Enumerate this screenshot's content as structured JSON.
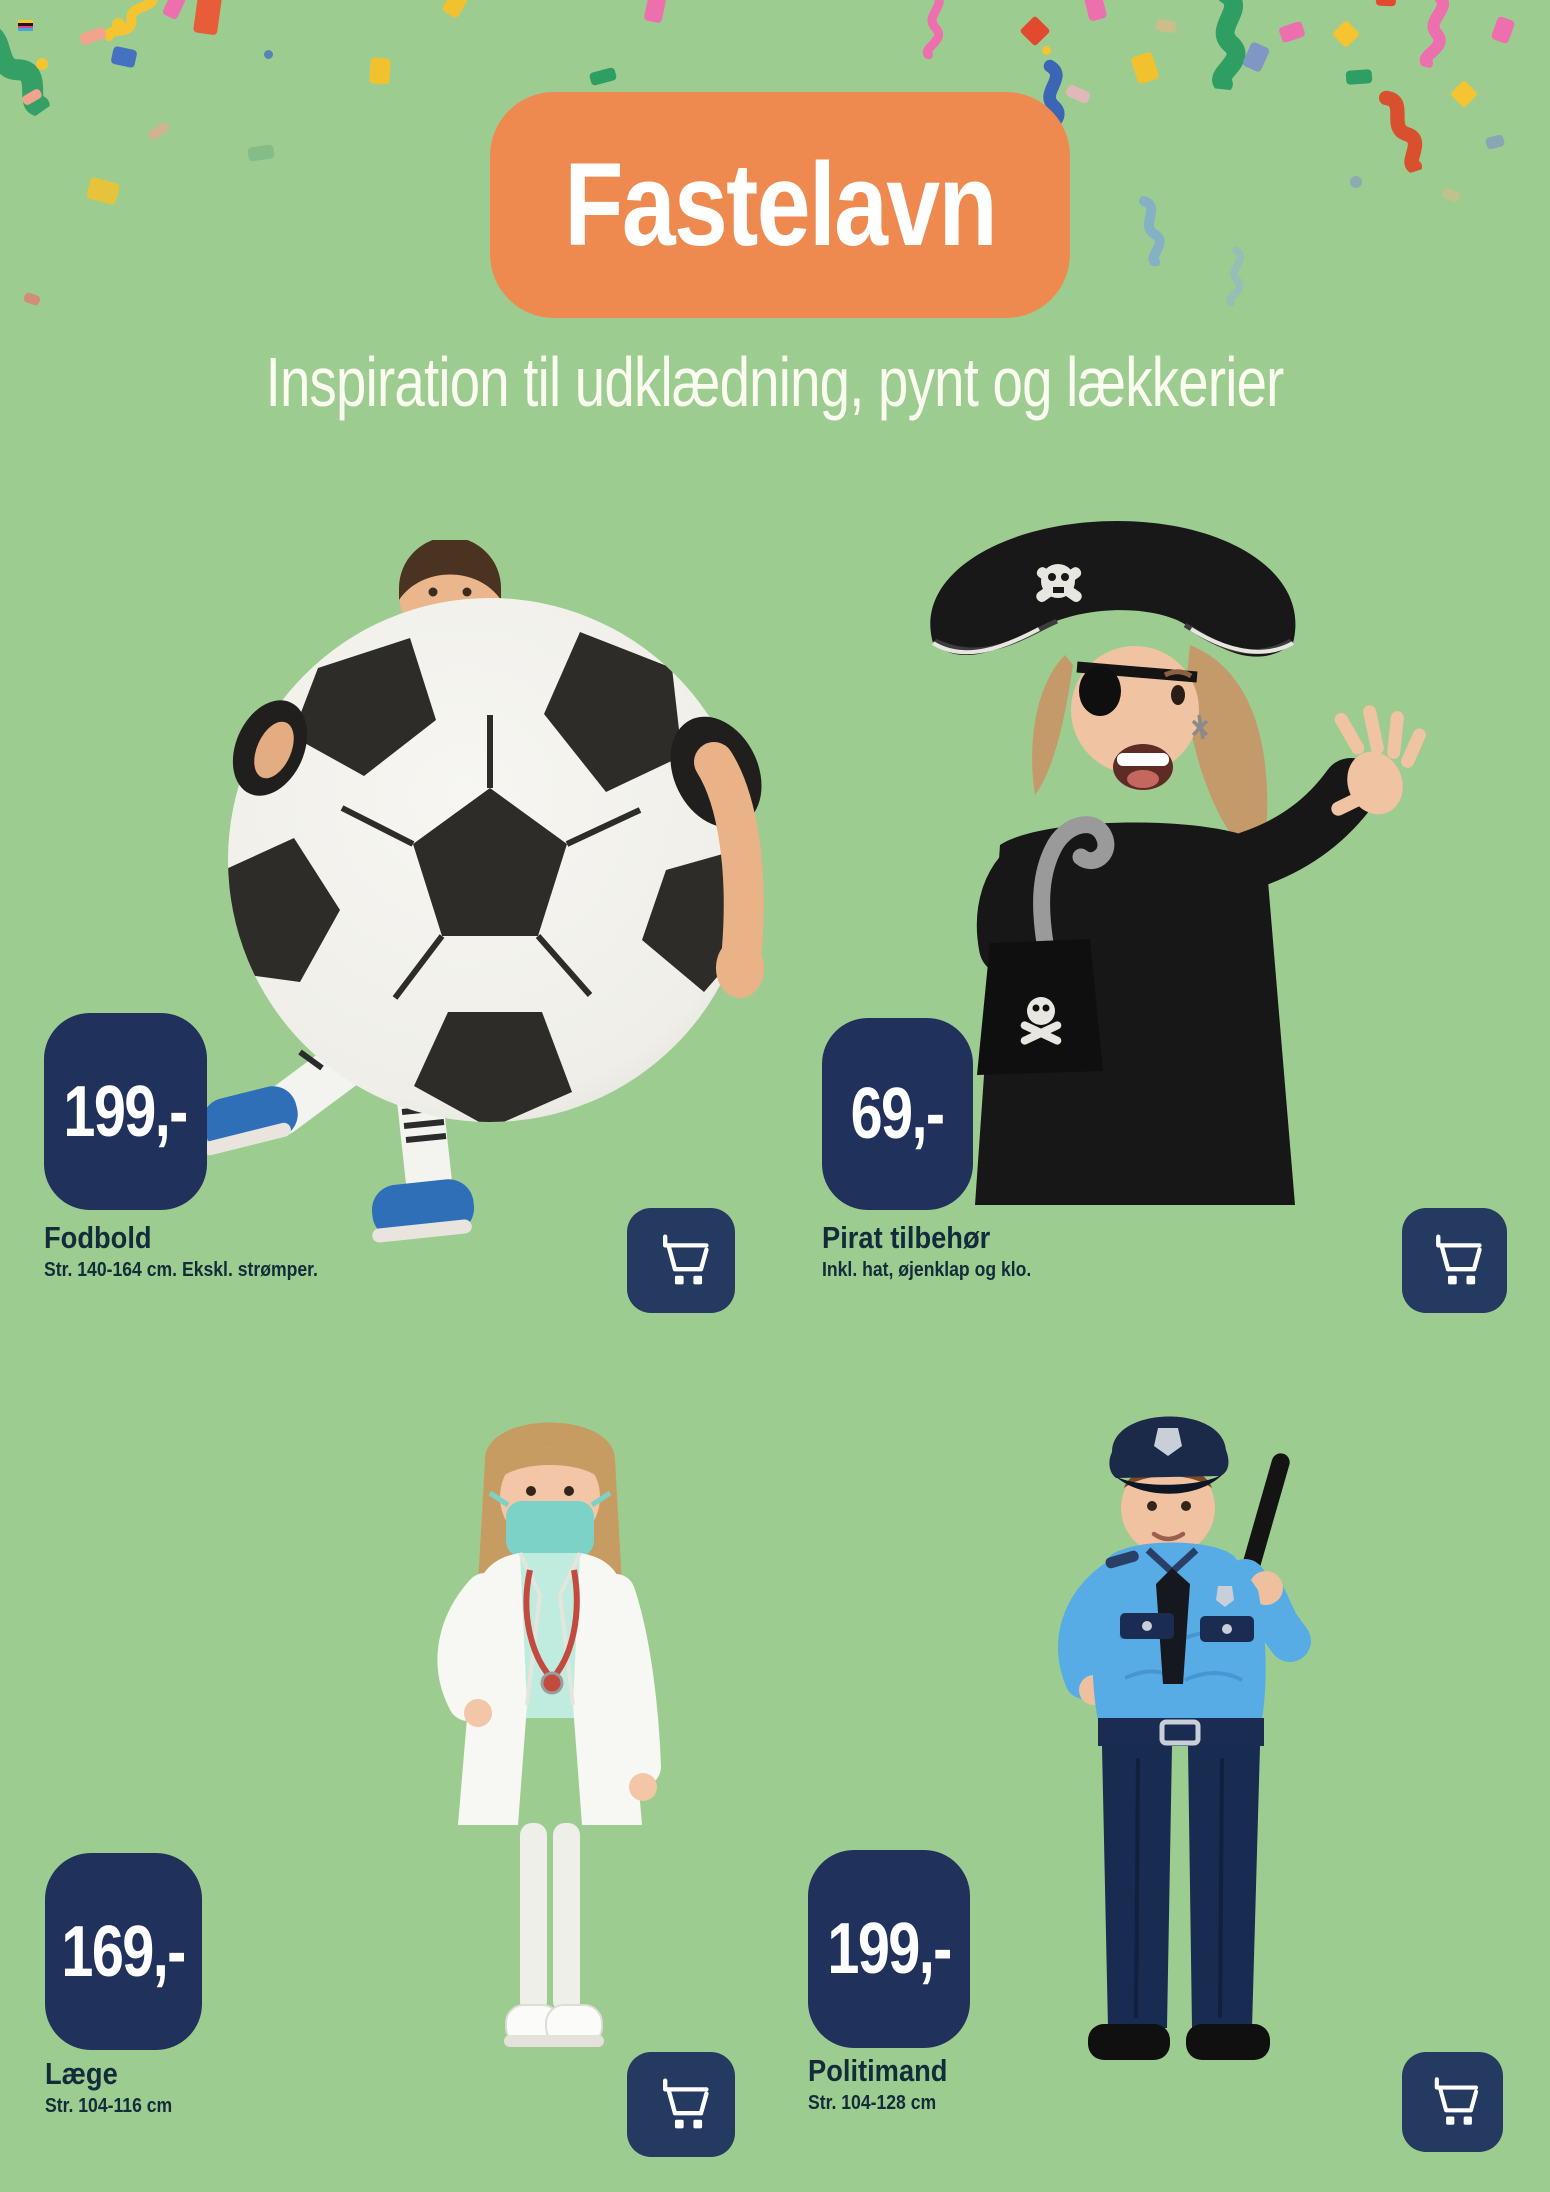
{
  "header": {
    "title": "Fastelavn",
    "subtitle": "Inspiration til udklædning, pynt og lækkerier"
  },
  "products": [
    {
      "price": "199,-",
      "name": "Fodbold",
      "details": "Str. 140-164 cm. Ekskl. strømper.",
      "image": "kid-in-soccer-ball-costume"
    },
    {
      "price": "69,-",
      "name": "Pirat tilbehør",
      "details": "Inkl. hat, øjenklap og klo.",
      "image": "girl-in-pirate-costume"
    },
    {
      "price": "169,-",
      "name": "Læge",
      "details": "Str. 104-116 cm",
      "image": "girl-in-doctor-costume"
    },
    {
      "price": "199,-",
      "name": "Politimand",
      "details": "Str. 104-128 cm",
      "image": "boy-in-police-costume"
    }
  ],
  "colors": {
    "background": "#9DCC91",
    "title_badge_bg": "#EE8A50",
    "title_text": "#FFFFFF",
    "subtitle_text": "#FBFCF0",
    "price_badge_bg": "#20325C",
    "price_text": "#FFFFFF",
    "cart_button_bg": "#243A61",
    "label_text": "#132C3A"
  },
  "icons": {
    "cart": "shopping-cart"
  }
}
